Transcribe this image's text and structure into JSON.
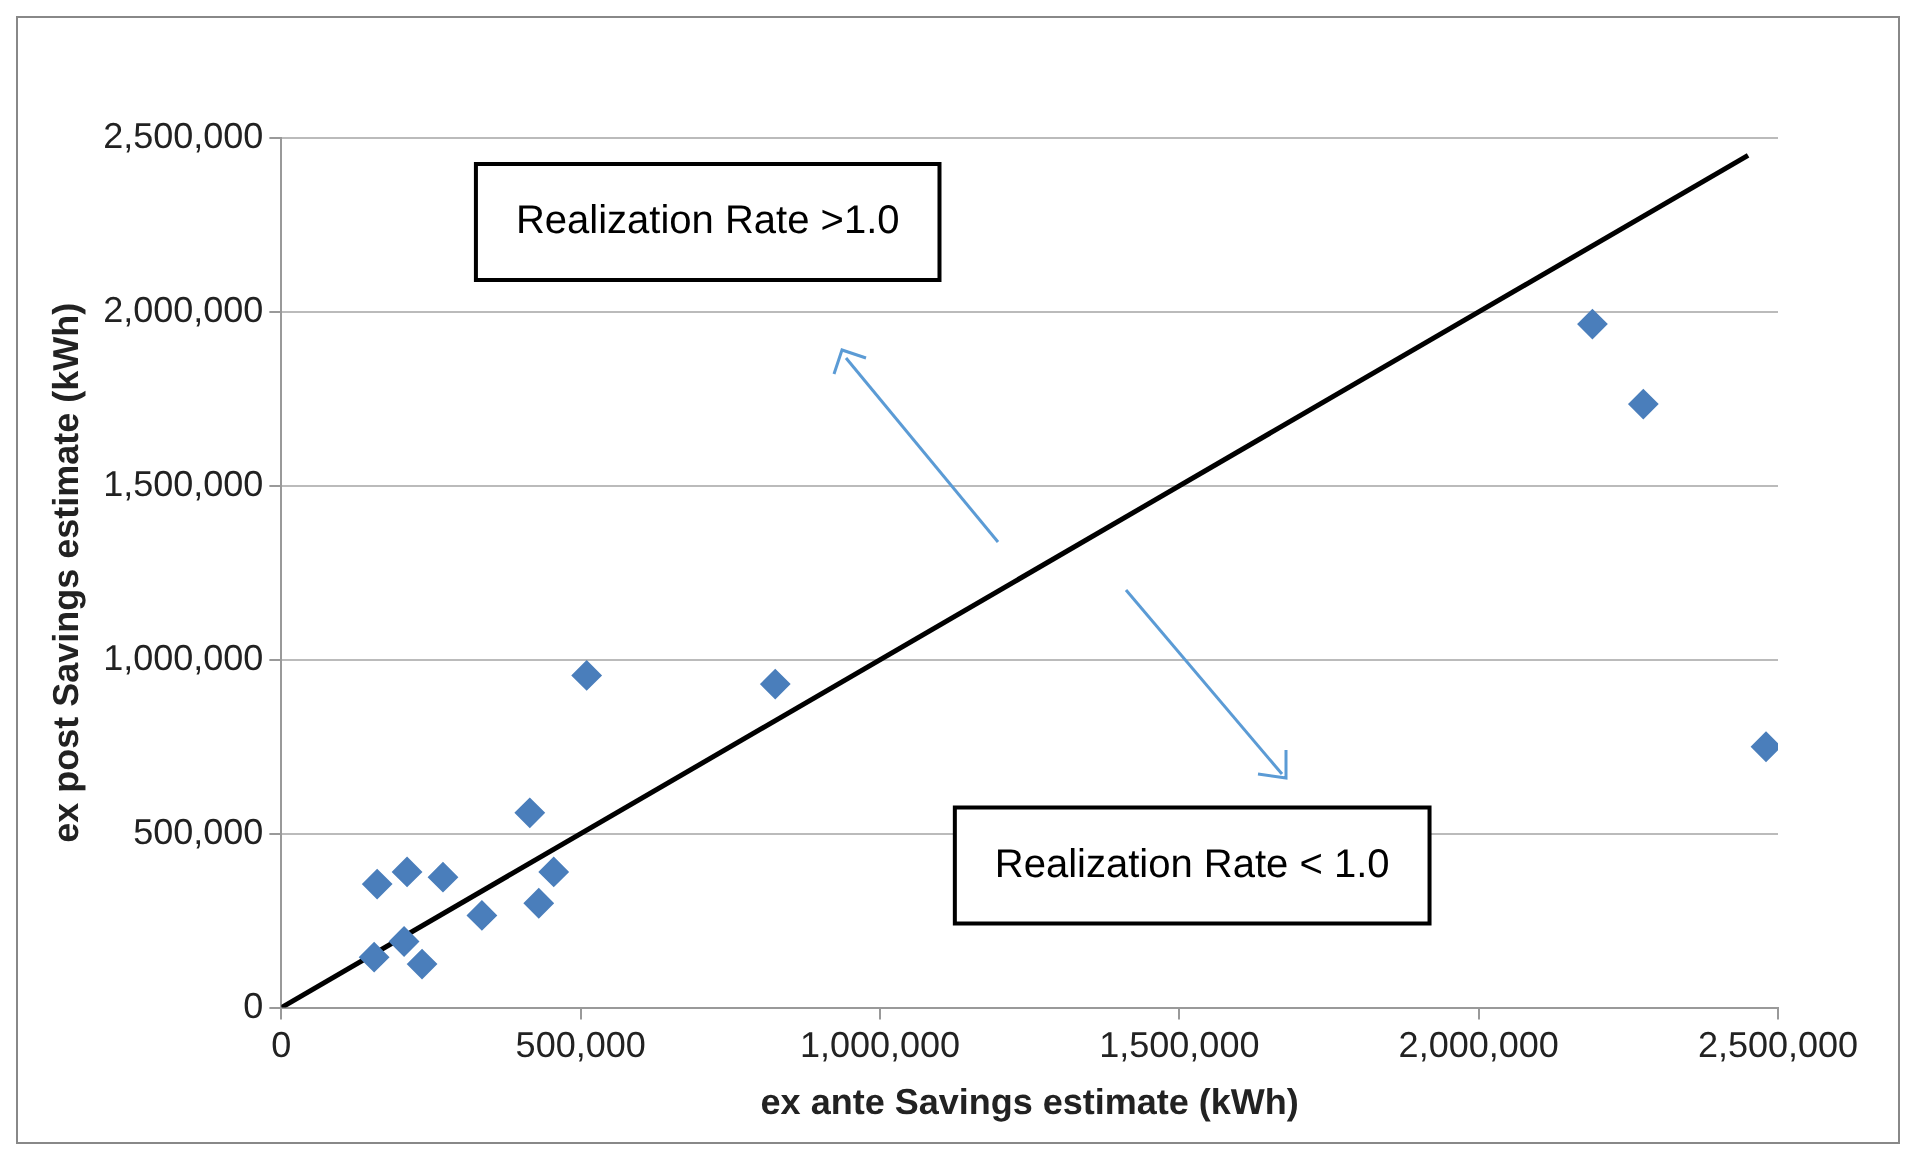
{
  "chart_data": {
    "type": "scatter",
    "xlabel": "ex ante Savings estimate (kWh)",
    "ylabel": "ex post Savings estimate (kWh)",
    "xlim": [
      0,
      2500000
    ],
    "ylim": [
      0,
      2500000
    ],
    "xticks": [
      0,
      {
        "value": 500000,
        "label": "500,000"
      },
      {
        "value": 1000000,
        "label": "1,000,000"
      },
      {
        "value": 1500000,
        "label": "1,500,000"
      },
      {
        "value": 2000000,
        "label": "2,000,000"
      },
      {
        "value": 2500000,
        "label": "2,500,000"
      }
    ],
    "yticks": [
      0,
      {
        "value": 500000,
        "label": "500,000"
      },
      {
        "value": 1000000,
        "label": "1,000,000"
      },
      {
        "value": 1500000,
        "label": "1,500,000"
      },
      {
        "value": 2000000,
        "label": "2,000,000"
      },
      {
        "value": 2500000,
        "label": "2,500,000"
      }
    ],
    "grid": "y",
    "legend": false,
    "series": [
      {
        "color": "#4a7ebb",
        "marker": "diamond",
        "x": [
          160000,
          210000,
          270000,
          155000,
          205000,
          235000,
          335000,
          415000,
          430000,
          455000,
          510000,
          825000,
          2190000,
          2275000,
          2480000
        ],
        "values": [
          355000,
          390000,
          375000,
          145000,
          190000,
          125000,
          265000,
          560000,
          300000,
          390000,
          955000,
          930000,
          1965000,
          1735000,
          750000
        ]
      },
      {
        "type": "line",
        "marker": "none",
        "color": "#000000",
        "x": [
          0,
          2450000
        ],
        "values": [
          0,
          2450000
        ]
      }
    ],
    "annotations": [
      {
        "text": "Realization Rate >1.0"
      },
      {
        "text": "Realization Rate < 1.0"
      }
    ]
  }
}
